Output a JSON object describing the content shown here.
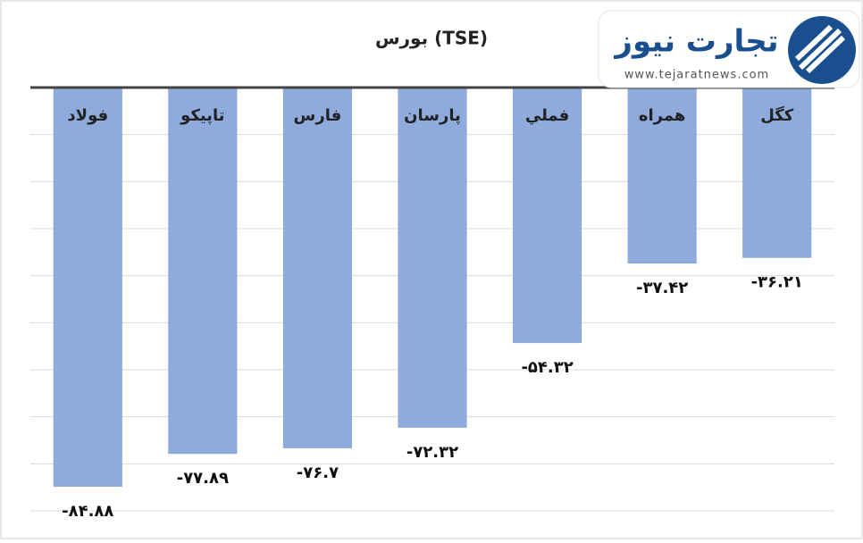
{
  "chart_data": {
    "type": "bar",
    "title": "بورس (TSE)",
    "categories": [
      "فولاد",
      "تاپیکو",
      "فارس",
      "پارسان",
      "فملي",
      "همراه",
      "کگل"
    ],
    "values": [
      -84.88,
      -77.89,
      -76.7,
      -72.32,
      -54.32,
      -37.42,
      -36.21
    ],
    "value_labels": [
      "-۸۴.۸۸",
      "-۷۷.۸۹",
      "-۷۶.۷",
      "-۷۲.۳۲",
      "-۵۴.۳۲",
      "-۳۷.۴۲",
      "-۳۶.۲۱"
    ],
    "color": "#8faadc",
    "ylim": [
      -90,
      0
    ],
    "yticks": [
      -90,
      -80,
      -70,
      -60,
      -50,
      -40,
      -30,
      -20,
      -10,
      0
    ],
    "grid": true
  },
  "logo": {
    "name": "تجارت نیوز",
    "url": "www.tejaratnews.com"
  }
}
